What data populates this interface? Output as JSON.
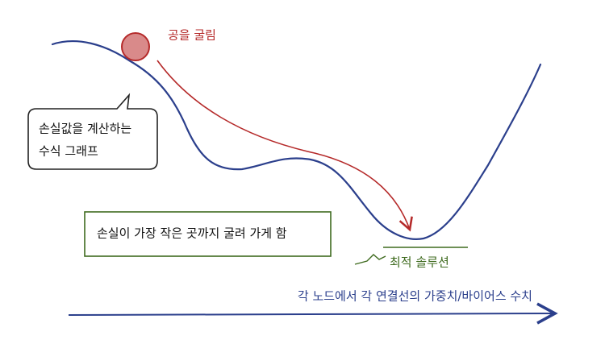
{
  "ball_label": "공을 굴림",
  "graph_note": {
    "lines": [
      "손실값을 계산하는",
      "수식 그래프"
    ]
  },
  "goal_note": "손실이 가장 작은 곳까지 굴려 가게 함",
  "optimum_label": "최적 솔루션",
  "axis_label": "각 노드에서 각 연결선의 가중치/바이어스 수치"
}
